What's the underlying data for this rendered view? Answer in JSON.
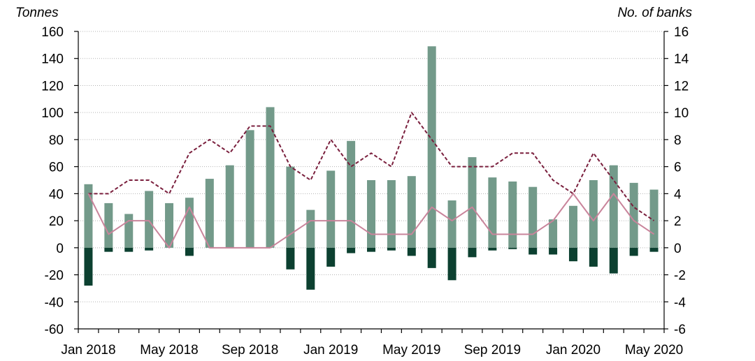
{
  "chart_data": {
    "type": "bar",
    "left_axis_title": "Tonnes",
    "right_axis_title": "No. of banks",
    "ylim_left": [
      -60,
      160
    ],
    "ylim_right": [
      -6,
      16
    ],
    "yticks_left": [
      "160",
      "140",
      "120",
      "100",
      "80",
      "60",
      "40",
      "20",
      "0",
      "-20",
      "-40",
      "-60"
    ],
    "yticks_right": [
      "16",
      "14",
      "12",
      "10",
      "8",
      "6",
      "4",
      "2",
      "0",
      "-2",
      "-4",
      "-6"
    ],
    "x_tick_labels": [
      "Jan 2018",
      "May 2018",
      "Sep 2018",
      "Jan 2019",
      "May 2019",
      "Sep 2019",
      "Jan 2020",
      "May 2020"
    ],
    "categories": [
      "Jan 2018",
      "Feb 2018",
      "Mar 2018",
      "Apr 2018",
      "May 2018",
      "Jun 2018",
      "Jul 2018",
      "Aug 2018",
      "Sep 2018",
      "Oct 2018",
      "Nov 2018",
      "Dec 2018",
      "Jan 2019",
      "Feb 2019",
      "Mar 2019",
      "Apr 2019",
      "May 2019",
      "Jun 2019",
      "Jul 2019",
      "Aug 2019",
      "Sep 2019",
      "Oct 2019",
      "Nov 2019",
      "Dec 2019",
      "Jan 2020",
      "Feb 2020",
      "Mar 2020",
      "Apr 2020",
      "May 2020"
    ],
    "grid": true,
    "series": [
      {
        "axis": "left",
        "kind": "bar",
        "color": "#739a8a",
        "values": [
          47,
          33,
          25,
          42,
          33,
          37,
          51,
          61,
          87,
          104,
          60,
          28,
          57,
          79,
          50,
          50,
          53,
          149,
          35,
          67,
          52,
          49,
          45,
          21,
          31,
          50,
          61,
          48,
          43
        ]
      },
      {
        "axis": "left",
        "kind": "bar",
        "color": "#0c4030",
        "values": [
          -28,
          -3,
          -3,
          -2,
          0,
          -6,
          0,
          0,
          0,
          0,
          -16,
          -31,
          -14,
          -4,
          -3,
          -2,
          -6,
          -15,
          -24,
          -7,
          -2,
          -1,
          -5,
          -5,
          -10,
          -14,
          -19,
          -6,
          -3
        ]
      },
      {
        "axis": "right",
        "kind": "line",
        "style": "dashed",
        "color": "#7a1f3d",
        "values": [
          4,
          4,
          5,
          5,
          4,
          7,
          8,
          7,
          9,
          9,
          6,
          5,
          8,
          6,
          7,
          6,
          10,
          8,
          6,
          6,
          6,
          7,
          7,
          5,
          4,
          7,
          5,
          3,
          2
        ]
      },
      {
        "axis": "right",
        "kind": "line",
        "style": "solid",
        "color": "#c9849b",
        "values": [
          4,
          1,
          2,
          2,
          0,
          3,
          0,
          0,
          0,
          0,
          1,
          2,
          2,
          2,
          1,
          1,
          1,
          3,
          2,
          3,
          1,
          1,
          1,
          2,
          4,
          2,
          4,
          2,
          1
        ]
      }
    ]
  }
}
